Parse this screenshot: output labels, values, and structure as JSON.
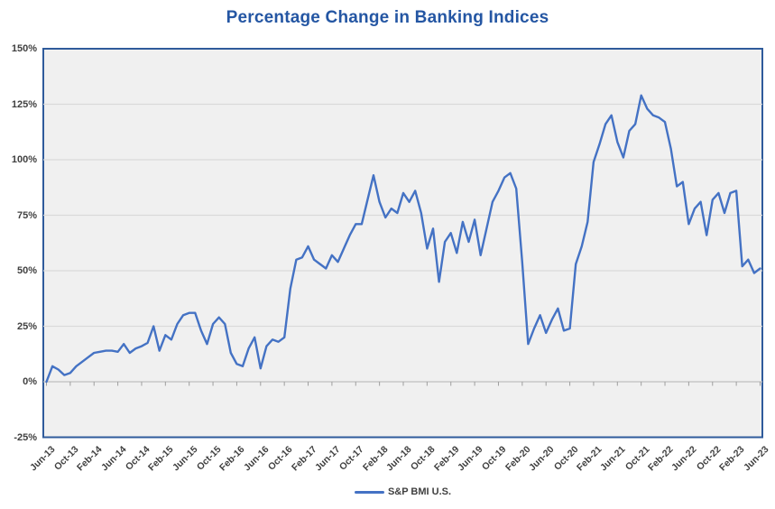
{
  "title": "Percentage Change in Banking Indices",
  "legend": {
    "series_label": "S&P BMI U.S."
  },
  "colors": {
    "series_line": "#4472C4",
    "title_text": "#2456A3",
    "plot_fill": "#F0F0F0",
    "plot_border": "#2F5B9B",
    "gridline": "#D9D9D9",
    "axis_line": "#BEBEBE",
    "tick_mark": "#9E9E9E",
    "axis_text": "#404040",
    "background": "#FFFFFF"
  },
  "chart_data": {
    "type": "line",
    "title": "Percentage Change in Banking Indices",
    "xlabel": "",
    "ylabel": "",
    "ylim": [
      -25,
      150
    ],
    "y_ticks": [
      150,
      125,
      100,
      75,
      50,
      25,
      0,
      -25
    ],
    "y_tick_suffix": "%",
    "grid": true,
    "legend_position": "bottom",
    "x_start": "Jun-13",
    "x_end": "Jun-23",
    "x_tick_interval_months": 4,
    "x_tick_labels": [
      "Jun-13",
      "Oct-13",
      "Feb-14",
      "Jun-14",
      "Oct-14",
      "Feb-15",
      "Jun-15",
      "Oct-15",
      "Feb-16",
      "Jun-16",
      "Oct-16",
      "Feb-17",
      "Jun-17",
      "Oct-17",
      "Feb-18",
      "Jun-18",
      "Oct-18",
      "Feb-19",
      "Jun-19",
      "Oct-19",
      "Feb-20",
      "Jun-20",
      "Oct-20",
      "Feb-21",
      "Jun-21",
      "Oct-21",
      "Feb-22",
      "Jun-22",
      "Oct-22",
      "Feb-23",
      "Jun-23"
    ],
    "series": [
      {
        "name": "S&P BMI U.S.",
        "unit": "percent",
        "values": [
          0,
          7,
          5.5,
          3,
          4,
          7,
          9,
          11,
          13,
          13.5,
          14,
          14,
          13.5,
          17,
          13,
          15,
          16,
          17.5,
          25,
          14,
          21,
          19,
          26,
          30,
          31,
          31,
          23,
          17,
          26,
          29,
          26,
          13,
          8,
          7,
          15,
          20,
          6,
          16,
          19,
          18,
          20,
          42,
          55,
          56,
          61,
          55,
          53,
          51,
          57,
          54,
          60,
          66,
          71,
          71,
          82,
          93,
          81,
          74,
          78,
          76,
          85,
          81,
          86,
          76,
          60,
          69,
          45,
          63,
          67,
          58,
          72,
          63,
          73,
          57,
          69,
          81,
          86,
          92,
          94,
          87,
          54,
          17,
          24,
          30,
          22,
          28,
          33,
          23,
          24,
          53,
          61,
          72,
          99,
          107,
          116,
          120,
          108,
          101,
          113,
          116,
          129,
          123,
          120,
          119,
          117,
          105,
          88,
          90,
          71,
          78,
          81,
          66,
          82,
          85,
          76,
          85,
          86,
          52,
          55,
          49,
          51
        ]
      }
    ]
  }
}
